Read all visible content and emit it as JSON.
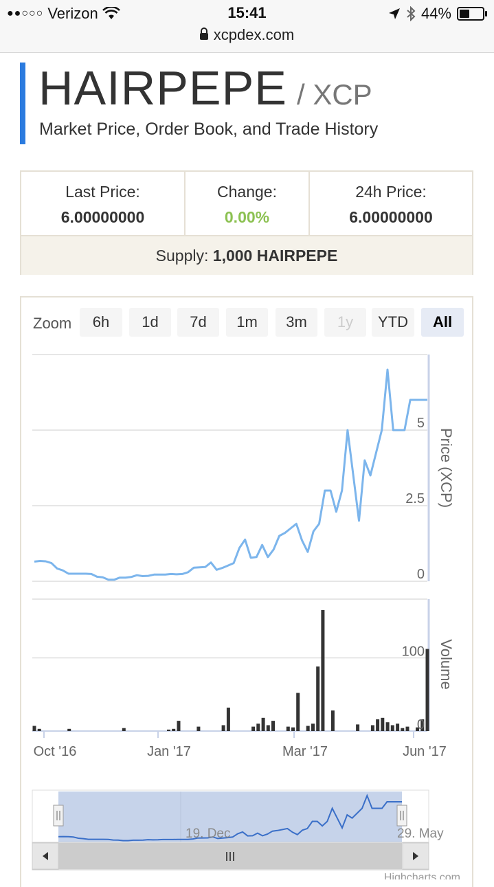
{
  "status_bar": {
    "signal": "●●○○○",
    "carrier": "Verizon",
    "time": "15:41",
    "battery": "44%",
    "url": "xcpdex.com"
  },
  "header": {
    "asset": "HAIRPEPE",
    "pair_suffix": "/ XCP",
    "subtitle": "Market Price, Order Book, and Trade History"
  },
  "stats": {
    "last_price_label": "Last Price:",
    "last_price_value": "6.00000000",
    "change_label": "Change:",
    "change_value": "0.00%",
    "price_24h_label": "24h Price:",
    "price_24h_value": "6.00000000",
    "supply_label": "Supply:",
    "supply_value": "1,000 HAIRPEPE"
  },
  "zoom": {
    "label": "Zoom",
    "buttons": [
      {
        "label": "6h",
        "state": "normal"
      },
      {
        "label": "1d",
        "state": "normal"
      },
      {
        "label": "7d",
        "state": "normal"
      },
      {
        "label": "1m",
        "state": "normal"
      },
      {
        "label": "3m",
        "state": "normal"
      },
      {
        "label": "1y",
        "state": "disabled"
      },
      {
        "label": "YTD",
        "state": "normal"
      },
      {
        "label": "All",
        "state": "active"
      }
    ]
  },
  "navigator": {
    "left_date": "19. Dec",
    "right_date": "29. May",
    "scroll_grip": "III",
    "credit": "Highcharts.com"
  },
  "chart_data": {
    "type": "line",
    "x_ticks": [
      "Oct '16",
      "Jan '17",
      "Mar '17",
      "Jun '17"
    ],
    "price": {
      "ylabel": "Price (XCP)",
      "y_ticks": [
        "0",
        "2.5",
        "5"
      ],
      "ylim": [
        0,
        7.5
      ],
      "color": "#7cb5ec",
      "values": [
        0.65,
        0.67,
        0.66,
        0.6,
        0.42,
        0.36,
        0.25,
        0.25,
        0.25,
        0.25,
        0.24,
        0.15,
        0.13,
        0.05,
        0.05,
        0.12,
        0.12,
        0.14,
        0.2,
        0.17,
        0.18,
        0.22,
        0.22,
        0.22,
        0.24,
        0.23,
        0.24,
        0.3,
        0.45,
        0.46,
        0.47,
        0.62,
        0.38,
        0.44,
        0.52,
        0.6,
        1.1,
        1.38,
        0.78,
        0.8,
        1.2,
        0.8,
        1.05,
        1.5,
        1.6,
        1.75,
        1.9,
        1.35,
        0.97,
        1.65,
        1.9,
        3.0,
        3.0,
        2.3,
        3.0,
        5.0,
        3.5,
        2.0,
        4.0,
        3.5,
        4.25,
        5.0,
        7.0,
        5.0,
        5.0,
        5.0,
        6.0,
        6.0,
        6.0,
        6.0
      ]
    },
    "volume": {
      "ylabel": "Volume",
      "y_ticks": [
        "0",
        "100"
      ],
      "ylim": [
        0,
        180
      ],
      "color": "#333333",
      "values": [
        7,
        3,
        0,
        0,
        0,
        0,
        0,
        3,
        0,
        0,
        0,
        0,
        0,
        0,
        0,
        0,
        0,
        0,
        4,
        0,
        0,
        0,
        0,
        0,
        0,
        0,
        0,
        2,
        3,
        14,
        0,
        0,
        0,
        6,
        0,
        0,
        0,
        0,
        8,
        32,
        0,
        0,
        0,
        0,
        6,
        10,
        18,
        8,
        14,
        0,
        0,
        6,
        5,
        52,
        0,
        7,
        10,
        88,
        165,
        0,
        28,
        0,
        0,
        0,
        0,
        9,
        0,
        0,
        8,
        16,
        18,
        12,
        8,
        10,
        4,
        6,
        0,
        5,
        16,
        112
      ]
    }
  }
}
